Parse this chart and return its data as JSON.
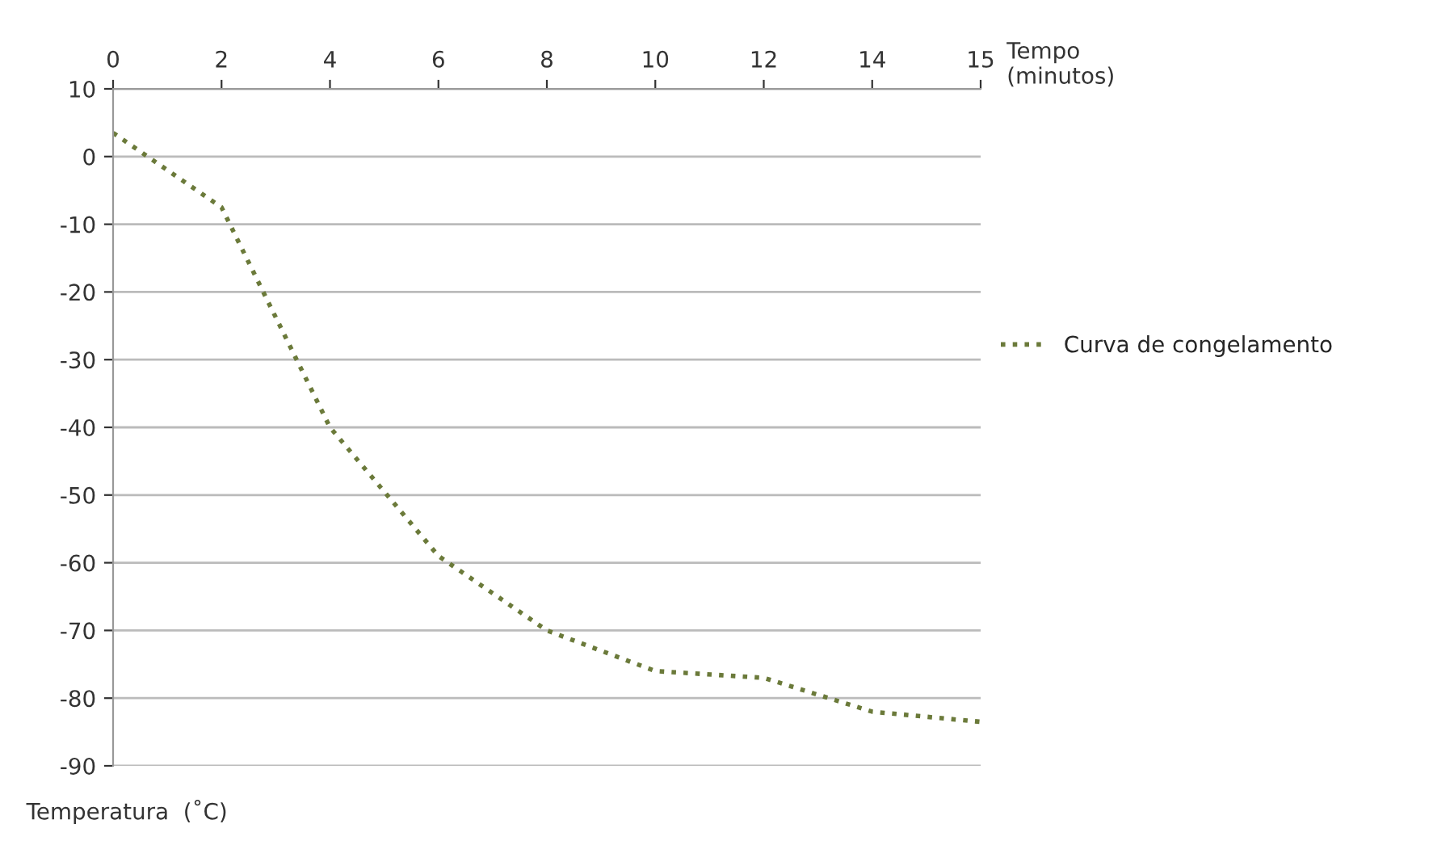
{
  "chart_data": {
    "type": "line",
    "xlabel": "Tempo\n(minutos)",
    "ylabel": "Temperatura  (˚C)",
    "categories": [
      "0",
      "2",
      "4",
      "6",
      "8",
      "10",
      "12",
      "14",
      "15"
    ],
    "series": [
      {
        "name": "Curva de congelamento",
        "color": "#6b7a3a",
        "values": [
          3.5,
          -7.5,
          -40,
          -59,
          -70,
          -76,
          -77,
          -82,
          -83.5
        ]
      }
    ],
    "ylim": [
      -90,
      10
    ],
    "yticks": [
      -90,
      -80,
      -70,
      -60,
      -50,
      -40,
      -30,
      -20,
      -10,
      0,
      10
    ],
    "grid": "y",
    "legend": "right",
    "line_style": "dotted",
    "marker": "none"
  }
}
